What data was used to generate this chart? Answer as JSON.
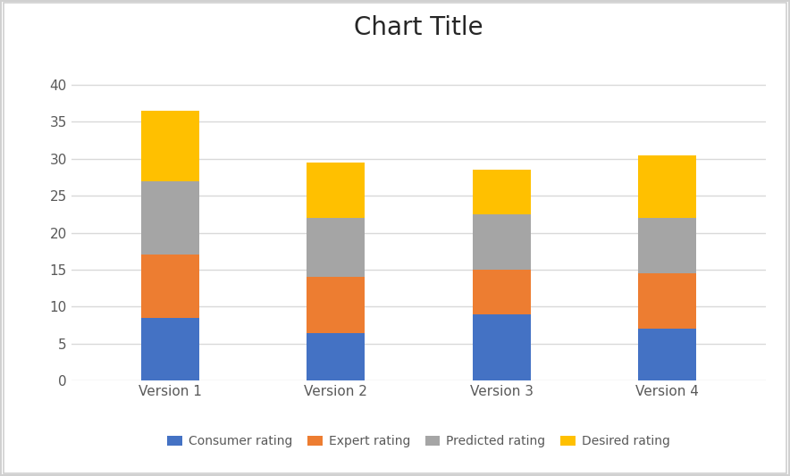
{
  "categories": [
    "Version 1",
    "Version 2",
    "Version 3",
    "Version 4"
  ],
  "consumer_rating": [
    8.5,
    6.5,
    9.0,
    7.0
  ],
  "expert_rating": [
    8.5,
    7.5,
    6.0,
    7.5
  ],
  "predicted_rating": [
    10.0,
    8.0,
    7.5,
    7.5
  ],
  "desired_rating": [
    9.5,
    7.5,
    6.0,
    8.5
  ],
  "colors": {
    "consumer": "#4472C4",
    "expert": "#ED7D31",
    "predicted": "#A5A5A5",
    "desired": "#FFC000"
  },
  "title": "Chart Title",
  "title_fontsize": 20,
  "legend_labels": [
    "Consumer rating",
    "Expert rating",
    "Predicted rating",
    "Desired rating"
  ],
  "ylim": [
    0,
    45
  ],
  "yticks": [
    0,
    5,
    10,
    15,
    20,
    25,
    30,
    35,
    40
  ],
  "bar_width": 0.35,
  "background_color": "#FFFFFF",
  "outer_border_color": "#D0D0D0",
  "grid_color": "#D9D9D9",
  "tick_label_color": "#595959",
  "legend_fontsize": 10,
  "axis_label_fontsize": 11
}
